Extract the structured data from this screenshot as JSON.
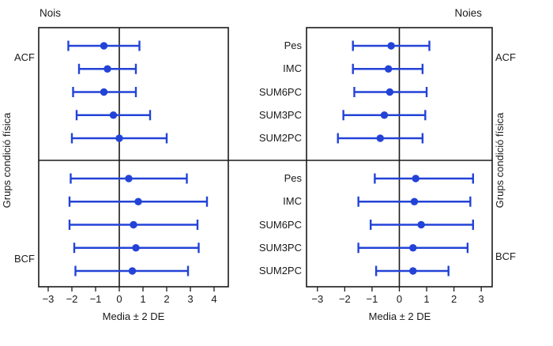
{
  "chart_data": {
    "type": "errorbar",
    "xlabel": "Media ± 2 DE",
    "ylabel": "Grups condició física",
    "group_labels": [
      "ACF",
      "BCF"
    ],
    "row_labels": [
      "Pes",
      "IMC",
      "SUM6PC",
      "SUM3PC",
      "SUM2PC"
    ],
    "accent_color": "#2343d7",
    "frame_color": "#1a1a1a",
    "panels": [
      {
        "title": "Nois",
        "xlim": [
          -3.4,
          4.6
        ],
        "ticks": [
          -3,
          -2,
          -1,
          0,
          1,
          2,
          3,
          4
        ],
        "tick_labels": [
          "−3",
          "−2",
          "−1",
          "0",
          "1",
          "2",
          "3",
          "4"
        ],
        "groups": [
          {
            "name": "ACF",
            "rows": [
              {
                "label": "Pes",
                "mean": -0.65,
                "lo": -2.15,
                "hi": 0.85
              },
              {
                "label": "IMC",
                "mean": -0.5,
                "lo": -1.7,
                "hi": 0.7
              },
              {
                "label": "SUM6PC",
                "mean": -0.65,
                "lo": -1.95,
                "hi": 0.7
              },
              {
                "label": "SUM3PC",
                "mean": -0.25,
                "lo": -1.8,
                "hi": 1.3
              },
              {
                "label": "SUM2PC",
                "mean": 0.0,
                "lo": -2.0,
                "hi": 2.0
              }
            ]
          },
          {
            "name": "BCF",
            "rows": [
              {
                "label": "Pes",
                "mean": 0.4,
                "lo": -2.05,
                "hi": 2.85
              },
              {
                "label": "IMC",
                "mean": 0.8,
                "lo": -2.1,
                "hi": 3.7
              },
              {
                "label": "SUM6PC",
                "mean": 0.6,
                "lo": -2.1,
                "hi": 3.3
              },
              {
                "label": "SUM3PC",
                "mean": 0.7,
                "lo": -1.9,
                "hi": 3.35
              },
              {
                "label": "SUM2PC",
                "mean": 0.55,
                "lo": -1.85,
                "hi": 2.9
              }
            ]
          }
        ]
      },
      {
        "title": "Noies",
        "xlim": [
          -3.4,
          3.4
        ],
        "ticks": [
          -3,
          -2,
          -1,
          0,
          1,
          2,
          3
        ],
        "tick_labels": [
          "−3",
          "−2",
          "−1",
          "0",
          "1",
          "2",
          "3"
        ],
        "groups": [
          {
            "name": "ACF",
            "rows": [
              {
                "label": "Pes",
                "mean": -0.3,
                "lo": -1.7,
                "hi": 1.1
              },
              {
                "label": "IMC",
                "mean": -0.4,
                "lo": -1.7,
                "hi": 0.85
              },
              {
                "label": "SUM6PC",
                "mean": -0.35,
                "lo": -1.65,
                "hi": 1.0
              },
              {
                "label": "SUM3PC",
                "mean": -0.55,
                "lo": -2.05,
                "hi": 0.95
              },
              {
                "label": "SUM2PC",
                "mean": -0.7,
                "lo": -2.25,
                "hi": 0.85
              }
            ]
          },
          {
            "name": "BCF",
            "rows": [
              {
                "label": "Pes",
                "mean": 0.6,
                "lo": -0.9,
                "hi": 2.7
              },
              {
                "label": "IMC",
                "mean": 0.55,
                "lo": -1.5,
                "hi": 2.6
              },
              {
                "label": "SUM6PC",
                "mean": 0.8,
                "lo": -1.05,
                "hi": 2.7
              },
              {
                "label": "SUM3PC",
                "mean": 0.5,
                "lo": -1.5,
                "hi": 2.5
              },
              {
                "label": "SUM2PC",
                "mean": 0.5,
                "lo": -0.85,
                "hi": 1.8
              }
            ]
          }
        ]
      }
    ]
  }
}
